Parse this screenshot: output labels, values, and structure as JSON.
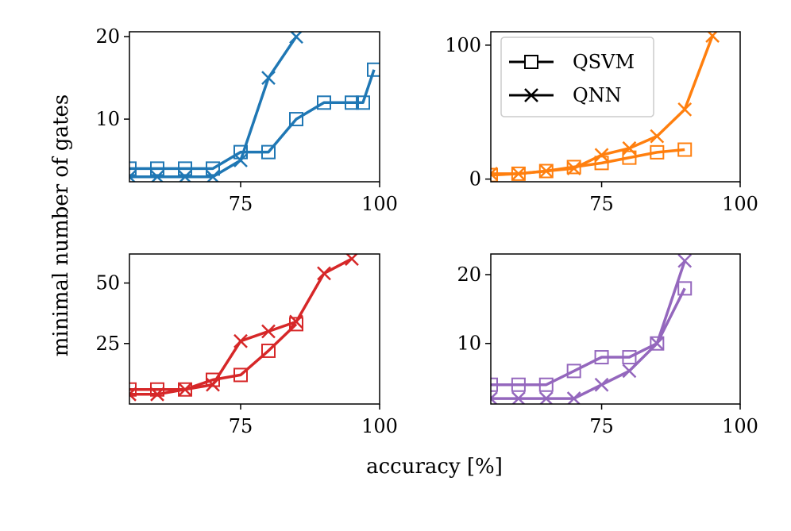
{
  "figure": {
    "xlabel": "accuracy [%]",
    "ylabel": "minimal number of gates"
  },
  "legend": {
    "placement": "top-left of top-right panel",
    "entries": [
      {
        "name": "QSVM",
        "marker": "square"
      },
      {
        "name": "QNN",
        "marker": "x"
      }
    ]
  },
  "chart_data": [
    {
      "type": "line",
      "panel": "top-left",
      "color": "#1f77b4",
      "xlim": [
        55,
        100
      ],
      "ylim": [
        2.4,
        20.6
      ],
      "xticks": [
        75,
        100
      ],
      "yticks": [
        10,
        20
      ],
      "series": [
        {
          "name": "QSVM",
          "marker": "square",
          "x": [
            55,
            60,
            65,
            70,
            75,
            80,
            85,
            90,
            95,
            97,
            99
          ],
          "y": [
            4,
            4,
            4,
            4,
            6,
            6,
            10,
            12,
            12,
            12,
            16
          ]
        },
        {
          "name": "QNN",
          "marker": "x",
          "x": [
            55,
            60,
            65,
            70,
            75,
            80,
            85
          ],
          "y": [
            3,
            3,
            3,
            3,
            5,
            15,
            20
          ]
        }
      ]
    },
    {
      "type": "line",
      "panel": "top-right",
      "color": "#ff7f0e",
      "xlim": [
        55,
        100
      ],
      "ylim": [
        -2,
        110
      ],
      "xticks": [
        75,
        100
      ],
      "yticks": [
        0,
        100
      ],
      "series": [
        {
          "name": "QSVM",
          "marker": "square",
          "x": [
            55,
            60,
            65,
            70,
            75,
            80,
            85,
            90
          ],
          "y": [
            3,
            4,
            6,
            9,
            12,
            16,
            20,
            22
          ]
        },
        {
          "name": "QNN",
          "marker": "x",
          "x": [
            55,
            60,
            65,
            70,
            75,
            80,
            85,
            90,
            95
          ],
          "y": [
            4,
            4,
            6,
            8,
            18,
            23,
            32,
            52,
            107
          ]
        }
      ]
    },
    {
      "type": "line",
      "panel": "bottom-left",
      "color": "#d62728",
      "xlim": [
        55,
        100
      ],
      "ylim": [
        0,
        62
      ],
      "xticks": [
        75,
        100
      ],
      "yticks": [
        25,
        50
      ],
      "series": [
        {
          "name": "QSVM",
          "marker": "square",
          "x": [
            55,
            60,
            65,
            70,
            75,
            80,
            85
          ],
          "y": [
            6,
            6,
            6,
            10,
            12,
            22,
            33
          ]
        },
        {
          "name": "QNN",
          "marker": "x",
          "x": [
            55,
            60,
            65,
            70,
            75,
            80,
            85,
            90,
            95
          ],
          "y": [
            4,
            4,
            6,
            8,
            26,
            30,
            34,
            54,
            60
          ]
        }
      ]
    },
    {
      "type": "line",
      "panel": "bottom-right",
      "color": "#9467bd",
      "xlim": [
        55,
        100
      ],
      "ylim": [
        1.2,
        23
      ],
      "xticks": [
        75,
        100
      ],
      "yticks": [
        10,
        20
      ],
      "series": [
        {
          "name": "QSVM",
          "marker": "square",
          "x": [
            55,
            60,
            65,
            70,
            75,
            80,
            85,
            90
          ],
          "y": [
            4,
            4,
            4,
            6,
            8,
            8,
            10,
            18
          ]
        },
        {
          "name": "QNN",
          "marker": "x",
          "x": [
            55,
            60,
            65,
            70,
            75,
            80,
            85,
            90
          ],
          "y": [
            2,
            2,
            2,
            2,
            4,
            6,
            10,
            22
          ]
        }
      ]
    }
  ]
}
